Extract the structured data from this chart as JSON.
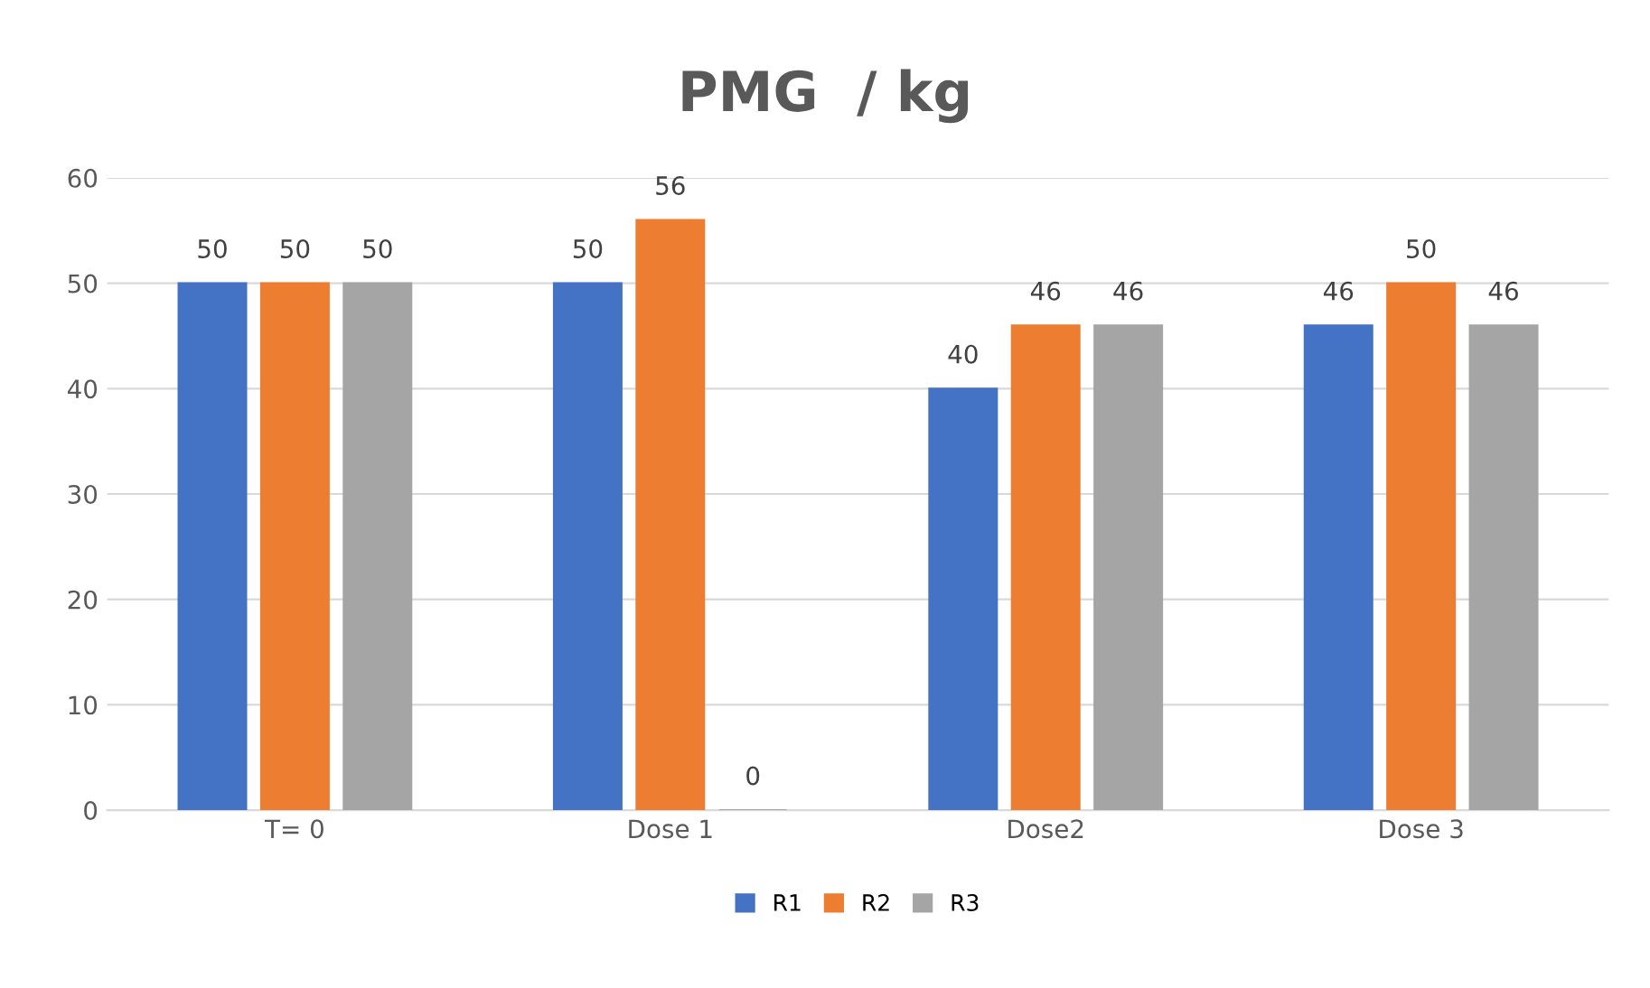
{
  "chart_data": {
    "type": "bar",
    "title": "PMG  / kg",
    "categories": [
      "T= 0",
      "Dose 1",
      "Dose2",
      "Dose 3"
    ],
    "series": [
      {
        "name": "R1",
        "color": "#4472c4",
        "values": [
          50,
          50,
          40,
          46
        ]
      },
      {
        "name": "R2",
        "color": "#ed7d31",
        "values": [
          50,
          56,
          46,
          50
        ]
      },
      {
        "name": "R3",
        "color": "#a5a5a5",
        "values": [
          50,
          0,
          46,
          46
        ]
      }
    ],
    "ylim": [
      0,
      60
    ],
    "yticks": [
      0,
      10,
      20,
      30,
      40,
      50,
      60
    ],
    "grid": "y",
    "legend": "bottom",
    "data_labels": true
  }
}
